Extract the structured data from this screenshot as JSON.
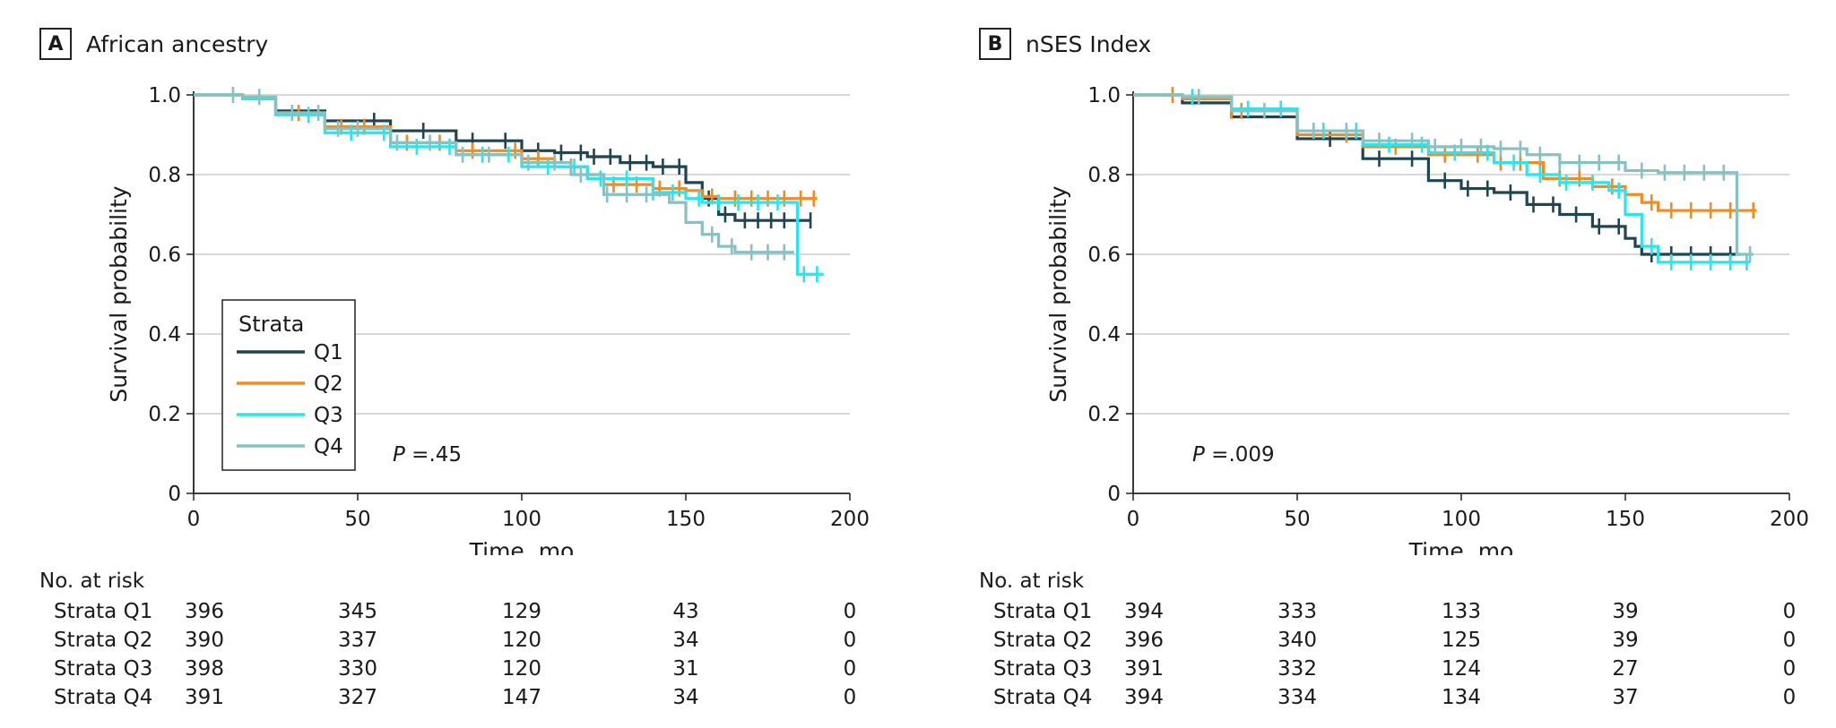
{
  "risk_header": "No. at risk",
  "chart_data": [
    {
      "type": "line",
      "panel_letter": "A",
      "title": "African ancestry",
      "xlabel": "Time, mo",
      "ylabel": "Survival probability",
      "xlim": [
        0,
        200
      ],
      "ylim": [
        0,
        1.0
      ],
      "xticks": [
        0,
        50,
        100,
        150,
        200
      ],
      "yticks": [
        0,
        0.2,
        0.4,
        0.6,
        0.8,
        1.0
      ],
      "ytick_labels": [
        "0",
        "0.2",
        "0.4",
        "0.6",
        "0.8",
        "1.0"
      ],
      "annotation": {
        "label": "P",
        "value": " =.45"
      },
      "legend": {
        "title": "Strata",
        "placement": "lower-left"
      },
      "series": [
        {
          "name": "Q1",
          "color": "#1f4550",
          "points": [
            [
              0,
              1
            ],
            [
              10,
              1
            ],
            [
              15,
              0.99
            ],
            [
              25,
              0.96
            ],
            [
              40,
              0.935
            ],
            [
              60,
              0.91
            ],
            [
              80,
              0.885
            ],
            [
              100,
              0.86
            ],
            [
              110,
              0.855
            ],
            [
              120,
              0.845
            ],
            [
              130,
              0.83
            ],
            [
              140,
              0.82
            ],
            [
              150,
              0.78
            ],
            [
              155,
              0.74
            ],
            [
              160,
              0.7
            ],
            [
              165,
              0.685
            ],
            [
              188,
              0.685
            ]
          ],
          "censor": [
            40,
            55,
            70,
            85,
            95,
            105,
            112,
            118,
            122,
            127,
            133,
            138,
            143,
            148,
            157,
            162,
            168,
            172,
            176,
            180,
            184,
            188
          ]
        },
        {
          "name": "Q2",
          "color": "#f28b22",
          "points": [
            [
              0,
              1
            ],
            [
              10,
              1
            ],
            [
              15,
              0.99
            ],
            [
              25,
              0.955
            ],
            [
              40,
              0.92
            ],
            [
              60,
              0.88
            ],
            [
              80,
              0.86
            ],
            [
              100,
              0.84
            ],
            [
              110,
              0.82
            ],
            [
              120,
              0.8
            ],
            [
              125,
              0.775
            ],
            [
              140,
              0.765
            ],
            [
              150,
              0.76
            ],
            [
              155,
              0.745
            ],
            [
              160,
              0.74
            ],
            [
              190,
              0.74
            ]
          ],
          "censor": [
            32,
            45,
            52,
            65,
            75,
            85,
            98,
            105,
            115,
            128,
            135,
            142,
            148,
            158,
            165,
            170,
            175,
            180,
            185,
            189
          ]
        },
        {
          "name": "Q3",
          "color": "#26e6ef",
          "points": [
            [
              0,
              1
            ],
            [
              10,
              1
            ],
            [
              15,
              0.99
            ],
            [
              25,
              0.95
            ],
            [
              40,
              0.905
            ],
            [
              60,
              0.87
            ],
            [
              80,
              0.85
            ],
            [
              100,
              0.82
            ],
            [
              120,
              0.79
            ],
            [
              140,
              0.755
            ],
            [
              150,
              0.74
            ],
            [
              155,
              0.73
            ],
            [
              183,
              0.73
            ],
            [
              184,
              0.55
            ],
            [
              192,
              0.55
            ]
          ],
          "censor": [
            35,
            48,
            58,
            68,
            78,
            88,
            96,
            108,
            116,
            124,
            132,
            140,
            146,
            154,
            160,
            166,
            172,
            178,
            186,
            190
          ]
        },
        {
          "name": "Q4",
          "color": "#87c2c2",
          "points": [
            [
              0,
              1
            ],
            [
              10,
              1
            ],
            [
              15,
              0.995
            ],
            [
              25,
              0.955
            ],
            [
              40,
              0.915
            ],
            [
              60,
              0.88
            ],
            [
              80,
              0.85
            ],
            [
              100,
              0.83
            ],
            [
              115,
              0.8
            ],
            [
              125,
              0.75
            ],
            [
              145,
              0.73
            ],
            [
              150,
              0.68
            ],
            [
              155,
              0.65
            ],
            [
              160,
              0.62
            ],
            [
              165,
              0.605
            ],
            [
              183,
              0.605
            ]
          ],
          "censor": [
            12,
            20,
            30,
            38,
            44,
            50,
            62,
            72,
            82,
            90,
            102,
            110,
            118,
            126,
            132,
            138,
            158,
            164,
            170,
            175,
            180
          ]
        }
      ],
      "risk_table": {
        "time_points": [
          0,
          50,
          100,
          150,
          200
        ],
        "rows": [
          {
            "label": "Strata Q1",
            "values": [
              "396",
              "345",
              "129",
              "43",
              "0"
            ]
          },
          {
            "label": "Strata Q2",
            "values": [
              "390",
              "337",
              "120",
              "34",
              "0"
            ]
          },
          {
            "label": "Strata Q3",
            "values": [
              "398",
              "330",
              "120",
              "31",
              "0"
            ]
          },
          {
            "label": "Strata Q4",
            "values": [
              "391",
              "327",
              "147",
              "34",
              "0"
            ]
          }
        ]
      }
    },
    {
      "type": "line",
      "panel_letter": "B",
      "title": "nSES Index",
      "xlabel": "Time, mo",
      "ylabel": "Survival probability",
      "xlim": [
        0,
        200
      ],
      "ylim": [
        0,
        1.0
      ],
      "xticks": [
        0,
        50,
        100,
        150,
        200
      ],
      "yticks": [
        0,
        0.2,
        0.4,
        0.6,
        0.8,
        1.0
      ],
      "ytick_labels": [
        "0",
        "0.2",
        "0.4",
        "0.6",
        "0.8",
        "1.0"
      ],
      "annotation": {
        "label": "P",
        "value": " =.009"
      },
      "series": [
        {
          "name": "Q1",
          "color": "#1f4550",
          "points": [
            [
              0,
              1
            ],
            [
              10,
              1
            ],
            [
              15,
              0.98
            ],
            [
              30,
              0.945
            ],
            [
              50,
              0.89
            ],
            [
              70,
              0.84
            ],
            [
              90,
              0.785
            ],
            [
              100,
              0.765
            ],
            [
              110,
              0.755
            ],
            [
              120,
              0.725
            ],
            [
              130,
              0.7
            ],
            [
              140,
              0.67
            ],
            [
              150,
              0.64
            ],
            [
              153,
              0.62
            ],
            [
              155,
              0.6
            ],
            [
              185,
              0.6
            ]
          ],
          "censor": [
            60,
            75,
            85,
            95,
            102,
            108,
            115,
            122,
            128,
            135,
            142,
            148,
            158,
            164,
            170,
            176,
            182
          ]
        },
        {
          "name": "Q2",
          "color": "#f28b22",
          "points": [
            [
              0,
              1
            ],
            [
              10,
              1
            ],
            [
              15,
              0.99
            ],
            [
              30,
              0.96
            ],
            [
              50,
              0.9
            ],
            [
              70,
              0.87
            ],
            [
              90,
              0.85
            ],
            [
              110,
              0.83
            ],
            [
              125,
              0.79
            ],
            [
              140,
              0.77
            ],
            [
              150,
              0.75
            ],
            [
              155,
              0.73
            ],
            [
              160,
              0.71
            ],
            [
              190,
              0.71
            ]
          ],
          "censor": [
            12,
            30,
            33,
            65,
            80,
            95,
            105,
            112,
            118,
            124,
            130,
            136,
            146,
            158,
            164,
            170,
            176,
            182,
            189
          ]
        },
        {
          "name": "Q3",
          "color": "#26e6ef",
          "points": [
            [
              0,
              1
            ],
            [
              10,
              1
            ],
            [
              15,
              0.995
            ],
            [
              30,
              0.965
            ],
            [
              50,
              0.91
            ],
            [
              70,
              0.875
            ],
            [
              90,
              0.855
            ],
            [
              110,
              0.83
            ],
            [
              120,
              0.8
            ],
            [
              130,
              0.78
            ],
            [
              145,
              0.76
            ],
            [
              150,
              0.7
            ],
            [
              155,
              0.62
            ],
            [
              160,
              0.58
            ],
            [
              188,
              0.58
            ]
          ],
          "censor": [
            18,
            35,
            45,
            58,
            68,
            78,
            88,
            98,
            108,
            116,
            124,
            132,
            140,
            148,
            158,
            164,
            170,
            176,
            182,
            187
          ]
        },
        {
          "name": "Q4",
          "color": "#87c2c2",
          "points": [
            [
              0,
              1
            ],
            [
              10,
              1
            ],
            [
              15,
              0.995
            ],
            [
              30,
              0.96
            ],
            [
              50,
              0.91
            ],
            [
              70,
              0.885
            ],
            [
              90,
              0.87
            ],
            [
              110,
              0.865
            ],
            [
              120,
              0.85
            ],
            [
              130,
              0.83
            ],
            [
              150,
              0.81
            ],
            [
              160,
              0.805
            ],
            [
              183,
              0.805
            ],
            [
              184,
              0.6
            ],
            [
              189,
              0.6
            ]
          ],
          "censor": [
            20,
            40,
            55,
            65,
            75,
            85,
            92,
            100,
            106,
            112,
            118,
            124,
            130,
            136,
            142,
            148,
            155,
            162,
            168,
            174,
            180,
            188
          ]
        }
      ],
      "risk_table": {
        "time_points": [
          0,
          50,
          100,
          150,
          200
        ],
        "rows": [
          {
            "label": "Strata Q1",
            "values": [
              "394",
              "333",
              "133",
              "39",
              "0"
            ]
          },
          {
            "label": "Strata Q2",
            "values": [
              "396",
              "340",
              "125",
              "39",
              "0"
            ]
          },
          {
            "label": "Strata Q3",
            "values": [
              "391",
              "332",
              "124",
              "27",
              "0"
            ]
          },
          {
            "label": "Strata Q4",
            "values": [
              "394",
              "334",
              "134",
              "37",
              "0"
            ]
          }
        ]
      }
    }
  ]
}
